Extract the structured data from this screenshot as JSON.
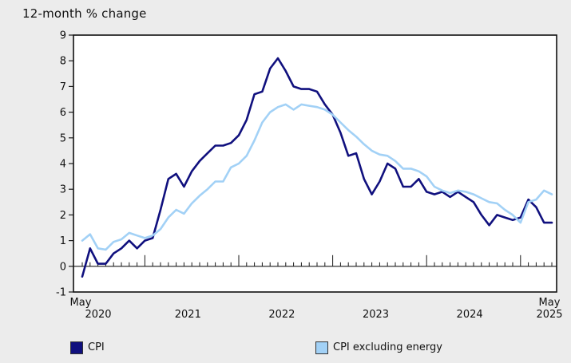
{
  "title": "12-month % change",
  "legend": {
    "items": [
      {
        "label": "CPI",
        "color": "#10107e"
      },
      {
        "label": "CPI excluding energy",
        "color": "#a2d1f6"
      }
    ]
  },
  "colors": {
    "background": "#ececec",
    "plot_background": "#ffffff",
    "axis": "#1a1a1a",
    "cpi_line": "#10107e",
    "cpi_excluding_energy_line": "#a2d1f6"
  },
  "chart_data": {
    "type": "line",
    "title": "12-month % change",
    "xlabel": "",
    "ylabel": "",
    "ylim": [
      -1,
      9
    ],
    "y_ticks": [
      -1,
      0,
      1,
      2,
      3,
      4,
      5,
      6,
      7,
      8,
      9
    ],
    "grid": false,
    "legend_position": "bottom",
    "x_axis": {
      "start_label_top": "May",
      "start_label_bottom": "2020",
      "year_labels": [
        "2021",
        "2022",
        "2023",
        "2024"
      ],
      "end_label_top": "May",
      "end_label_bottom": "2025",
      "months_total": 61,
      "minor_tick": "monthly",
      "major_tick": "january"
    },
    "series": [
      {
        "name": "CPI",
        "color": "#10107e",
        "values": [
          -0.4,
          0.7,
          0.1,
          0.1,
          0.5,
          0.7,
          1.0,
          0.7,
          1.0,
          1.1,
          2.2,
          3.4,
          3.6,
          3.1,
          3.7,
          4.1,
          4.4,
          4.7,
          4.7,
          4.8,
          5.1,
          5.7,
          6.7,
          6.8,
          7.7,
          8.1,
          7.6,
          7.0,
          6.9,
          6.9,
          6.8,
          6.3,
          5.9,
          5.2,
          4.3,
          4.4,
          3.4,
          2.8,
          3.3,
          4.0,
          3.8,
          3.1,
          3.1,
          3.4,
          2.9,
          2.8,
          2.9,
          2.7,
          2.9,
          2.7,
          2.5,
          2.0,
          1.6,
          2.0,
          1.9,
          1.8,
          1.9,
          2.6,
          2.3,
          1.7,
          1.7
        ]
      },
      {
        "name": "CPI excluding energy",
        "color": "#a2d1f6",
        "values": [
          1.0,
          1.25,
          0.7,
          0.65,
          0.95,
          1.05,
          1.3,
          1.2,
          1.1,
          1.2,
          1.45,
          1.9,
          2.2,
          2.05,
          2.45,
          2.75,
          3.0,
          3.3,
          3.3,
          3.85,
          4.0,
          4.3,
          4.9,
          5.6,
          6.0,
          6.2,
          6.3,
          6.1,
          6.3,
          6.25,
          6.2,
          6.1,
          5.9,
          5.6,
          5.3,
          5.05,
          4.75,
          4.5,
          4.35,
          4.3,
          4.1,
          3.8,
          3.8,
          3.7,
          3.5,
          3.1,
          2.95,
          2.85,
          2.95,
          2.9,
          2.8,
          2.65,
          2.5,
          2.45,
          2.2,
          2.0,
          1.7,
          2.5,
          2.6,
          2.95,
          2.8
        ]
      }
    ]
  }
}
